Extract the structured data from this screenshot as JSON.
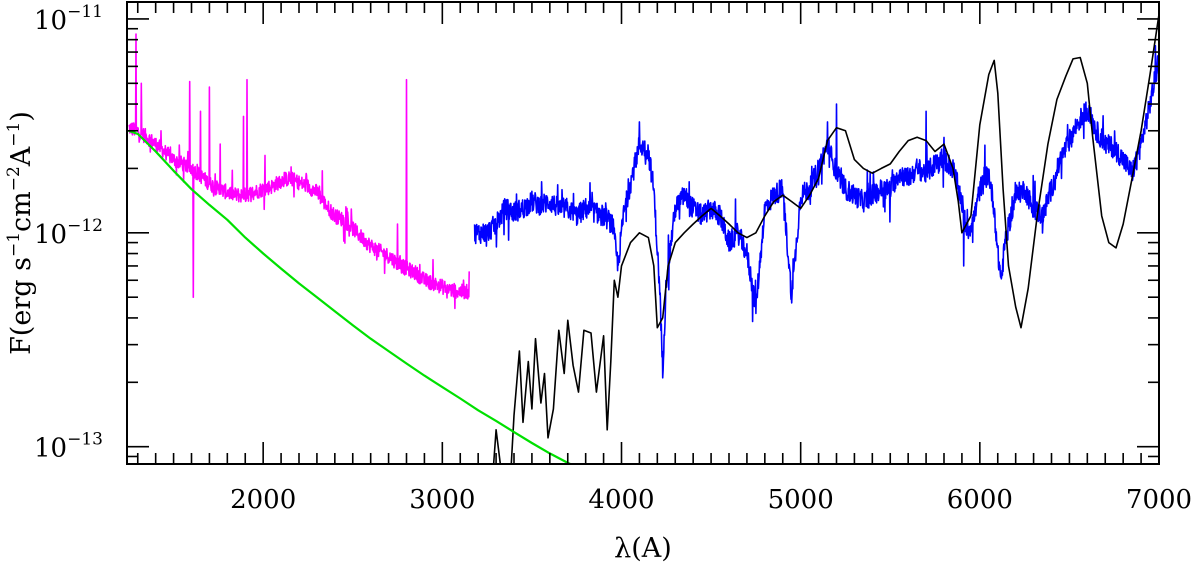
{
  "chart_data": {
    "type": "line",
    "title": "",
    "xlabel": "λ(A)",
    "ylabel": {
      "parts": [
        "F(erg s",
        "−1",
        "cm",
        "−2",
        "A",
        "−1",
        ")"
      ]
    },
    "xlim": [
      1240,
      7000
    ],
    "ylim": [
      8.3e-14,
      1.2e-11
    ],
    "yscale": "log",
    "x_ticks": [
      {
        "value": 2000,
        "label": "2000"
      },
      {
        "value": 3000,
        "label": "3000"
      },
      {
        "value": 4000,
        "label": "4000"
      },
      {
        "value": 5000,
        "label": "5000"
      },
      {
        "value": 6000,
        "label": "6000"
      },
      {
        "value": 7000,
        "label": "7000"
      }
    ],
    "y_ticks": [
      {
        "value": 1e-13,
        "base": "10",
        "exp": "−13"
      },
      {
        "value": 1e-12,
        "base": "10",
        "exp": "−12"
      },
      {
        "value": 1e-11,
        "base": "10",
        "exp": "−11"
      }
    ],
    "grid": false,
    "legend": "none",
    "series": [
      {
        "color": "#ff00ff",
        "style": "noisy",
        "noise_dex": 0.035,
        "points": [
          [
            1250,
            3.1e-12
          ],
          [
            1300,
            3e-12
          ],
          [
            1350,
            2.8e-12
          ],
          [
            1400,
            2.6e-12
          ],
          [
            1450,
            2.4e-12
          ],
          [
            1500,
            2.2e-12
          ],
          [
            1550,
            2.1e-12
          ],
          [
            1600,
            2e-12
          ],
          [
            1650,
            1.85e-12
          ],
          [
            1700,
            1.7e-12
          ],
          [
            1750,
            1.6e-12
          ],
          [
            1800,
            1.55e-12
          ],
          [
            1850,
            1.5e-12
          ],
          [
            1900,
            1.5e-12
          ],
          [
            1950,
            1.55e-12
          ],
          [
            2000,
            1.6e-12
          ],
          [
            2050,
            1.65e-12
          ],
          [
            2100,
            1.75e-12
          ],
          [
            2150,
            1.8e-12
          ],
          [
            2200,
            1.72e-12
          ],
          [
            2250,
            1.65e-12
          ],
          [
            2300,
            1.55e-12
          ],
          [
            2350,
            1.35e-12
          ],
          [
            2400,
            1.2e-12
          ],
          [
            2450,
            1.15e-12
          ],
          [
            2500,
            1.05e-12
          ],
          [
            2550,
            9.5e-13
          ],
          [
            2600,
            8.7e-13
          ],
          [
            2650,
            8.2e-13
          ],
          [
            2700,
            7.8e-13
          ],
          [
            2750,
            7.2e-13
          ],
          [
            2800,
            6.8e-13
          ],
          [
            2850,
            6.5e-13
          ],
          [
            2900,
            6e-13
          ],
          [
            2950,
            5.8e-13
          ],
          [
            3000,
            5.6e-13
          ],
          [
            3050,
            5.4e-13
          ],
          [
            3100,
            5.3e-13
          ],
          [
            3150,
            5.3e-13
          ]
        ],
        "spikes": [
          [
            1290,
            8.5e-12
          ],
          [
            1320,
            5e-12
          ],
          [
            1430,
            3e-12
          ],
          [
            1590,
            5.1e-12
          ],
          [
            1610,
            5e-13
          ],
          [
            1650,
            3.7e-12
          ],
          [
            1700,
            4.8e-12
          ],
          [
            1760,
            2.6e-12
          ],
          [
            1890,
            3.5e-12
          ],
          [
            1910,
            5.2e-12
          ],
          [
            2010,
            2.3e-12
          ],
          [
            2330,
            1.95e-12
          ],
          [
            2800,
            5.2e-12
          ],
          [
            2750,
            1.1e-12
          ],
          [
            3150,
            6.6e-13
          ],
          [
            3160,
            4.9e-13
          ]
        ]
      },
      {
        "color": "#0000ff",
        "style": "noisy",
        "noise_dex": 0.05,
        "points": [
          [
            3180,
            1e-12
          ],
          [
            3250,
            1e-12
          ],
          [
            3300,
            1.1e-12
          ],
          [
            3350,
            1.3e-12
          ],
          [
            3400,
            1.25e-12
          ],
          [
            3450,
            1.3e-12
          ],
          [
            3500,
            1.4e-12
          ],
          [
            3550,
            1.35e-12
          ],
          [
            3600,
            1.4e-12
          ],
          [
            3650,
            1.3e-12
          ],
          [
            3700,
            1.3e-12
          ],
          [
            3750,
            1.2e-12
          ],
          [
            3800,
            1.3e-12
          ],
          [
            3850,
            1.25e-12
          ],
          [
            3900,
            1.2e-12
          ],
          [
            3950,
            1.1e-12
          ],
          [
            3980,
            7e-13
          ],
          [
            4010,
            1.2e-12
          ],
          [
            4050,
            1.7e-12
          ],
          [
            4100,
            2.6e-12
          ],
          [
            4150,
            2.4e-12
          ],
          [
            4180,
            1.6e-12
          ],
          [
            4210,
            6e-13
          ],
          [
            4230,
            2.3e-13
          ],
          [
            4250,
            6e-13
          ],
          [
            4300,
            1.3e-12
          ],
          [
            4350,
            1.5e-12
          ],
          [
            4400,
            1.3e-12
          ],
          [
            4450,
            1.2e-12
          ],
          [
            4500,
            1.3e-12
          ],
          [
            4550,
            1.2e-12
          ],
          [
            4600,
            9e-13
          ],
          [
            4650,
            1e-12
          ],
          [
            4700,
            8e-13
          ],
          [
            4750,
            4.5e-13
          ],
          [
            4800,
            1.3e-12
          ],
          [
            4850,
            1.5e-12
          ],
          [
            4900,
            1.6e-12
          ],
          [
            4950,
            5e-13
          ],
          [
            5000,
            1.5e-12
          ],
          [
            5050,
            1.6e-12
          ],
          [
            5100,
            2e-12
          ],
          [
            5150,
            2.6e-12
          ],
          [
            5200,
            1.9e-12
          ],
          [
            5250,
            1.6e-12
          ],
          [
            5300,
            1.5e-12
          ],
          [
            5350,
            1.4e-12
          ],
          [
            5400,
            1.5e-12
          ],
          [
            5450,
            1.6e-12
          ],
          [
            5500,
            1.6e-12
          ],
          [
            5550,
            1.9e-12
          ],
          [
            5600,
            1.8e-12
          ],
          [
            5650,
            2e-12
          ],
          [
            5700,
            1.9e-12
          ],
          [
            5750,
            2.1e-12
          ],
          [
            5800,
            2.2e-12
          ],
          [
            5850,
            2e-12
          ],
          [
            5900,
            1.4e-12
          ],
          [
            5930,
            1e-12
          ],
          [
            5970,
            1.2e-12
          ],
          [
            6000,
            1.6e-12
          ],
          [
            6050,
            1.9e-12
          ],
          [
            6080,
            1.3e-12
          ],
          [
            6100,
            8e-13
          ],
          [
            6120,
            6e-13
          ],
          [
            6140,
            9e-13
          ],
          [
            6200,
            1.5e-12
          ],
          [
            6250,
            1.6e-12
          ],
          [
            6300,
            1.3e-12
          ],
          [
            6350,
            1.2e-12
          ],
          [
            6400,
            1.6e-12
          ],
          [
            6450,
            2.2e-12
          ],
          [
            6500,
            2.7e-12
          ],
          [
            6550,
            3.3e-12
          ],
          [
            6600,
            3.8e-12
          ],
          [
            6650,
            3e-12
          ],
          [
            6700,
            2.6e-12
          ],
          [
            6750,
            2.5e-12
          ],
          [
            6800,
            2.2e-12
          ],
          [
            6850,
            1.9e-12
          ],
          [
            6900,
            2.6e-12
          ],
          [
            6950,
            4e-12
          ],
          [
            7000,
            6.5e-12
          ]
        ],
        "spikes": [
          [
            4100,
            3.3e-12
          ],
          [
            4230,
            2.1e-13
          ],
          [
            4750,
            4.2e-13
          ],
          [
            4950,
            4.7e-13
          ],
          [
            5150,
            3.3e-12
          ],
          [
            5200,
            4e-12
          ],
          [
            5700,
            3.7e-12
          ],
          [
            5910,
            7e-13
          ],
          [
            6980,
            7.5e-12
          ]
        ]
      },
      {
        "color": "#000000",
        "style": "line",
        "points": [
          [
            3280,
            7e-14
          ],
          [
            3300,
            1.2e-13
          ],
          [
            3330,
            7.5e-14
          ],
          [
            3380,
            7e-14
          ],
          [
            3400,
            1.4e-13
          ],
          [
            3430,
            2.8e-13
          ],
          [
            3450,
            1.3e-13
          ],
          [
            3480,
            2.5e-13
          ],
          [
            3500,
            1.5e-13
          ],
          [
            3520,
            3.2e-13
          ],
          [
            3550,
            1.6e-13
          ],
          [
            3570,
            2.2e-13
          ],
          [
            3590,
            1.1e-13
          ],
          [
            3620,
            1.5e-13
          ],
          [
            3650,
            3.5e-13
          ],
          [
            3680,
            2.2e-13
          ],
          [
            3700,
            3.9e-13
          ],
          [
            3730,
            2.4e-13
          ],
          [
            3760,
            1.8e-13
          ],
          [
            3790,
            3.5e-13
          ],
          [
            3830,
            3.4e-13
          ],
          [
            3860,
            1.8e-13
          ],
          [
            3900,
            3.3e-13
          ],
          [
            3920,
            1.2e-13
          ],
          [
            3940,
            2.5e-13
          ],
          [
            3960,
            6e-13
          ],
          [
            3980,
            5e-13
          ],
          [
            4000,
            7e-13
          ],
          [
            4050,
            9e-13
          ],
          [
            4100,
            1e-12
          ],
          [
            4150,
            9.5e-13
          ],
          [
            4180,
            7e-13
          ],
          [
            4200,
            3.6e-13
          ],
          [
            4230,
            4e-13
          ],
          [
            4260,
            7e-13
          ],
          [
            4300,
            9e-13
          ],
          [
            4350,
            1e-12
          ],
          [
            4400,
            1.1e-12
          ],
          [
            4450,
            1.2e-12
          ],
          [
            4500,
            1.3e-12
          ],
          [
            4550,
            1.2e-12
          ],
          [
            4600,
            1.1e-12
          ],
          [
            4650,
            1e-12
          ],
          [
            4700,
            9.5e-13
          ],
          [
            4750,
            1e-12
          ],
          [
            4800,
            1.2e-12
          ],
          [
            4850,
            1.4e-12
          ],
          [
            4900,
            1.5e-12
          ],
          [
            4950,
            1.4e-12
          ],
          [
            5000,
            1.3e-12
          ],
          [
            5050,
            1.5e-12
          ],
          [
            5100,
            1.8e-12
          ],
          [
            5150,
            2.7e-12
          ],
          [
            5200,
            3.1e-12
          ],
          [
            5250,
            3e-12
          ],
          [
            5300,
            2.2e-12
          ],
          [
            5350,
            2e-12
          ],
          [
            5400,
            1.9e-12
          ],
          [
            5450,
            2e-12
          ],
          [
            5500,
            2.1e-12
          ],
          [
            5550,
            2.4e-12
          ],
          [
            5600,
            2.7e-12
          ],
          [
            5650,
            2.8e-12
          ],
          [
            5700,
            2.7e-12
          ],
          [
            5750,
            2.4e-12
          ],
          [
            5800,
            2.6e-12
          ],
          [
            5850,
            2e-12
          ],
          [
            5880,
            1.4e-12
          ],
          [
            5900,
            1e-12
          ],
          [
            5950,
            1.2e-12
          ],
          [
            6000,
            3.2e-12
          ],
          [
            6050,
            5.5e-12
          ],
          [
            6080,
            6.4e-12
          ],
          [
            6100,
            4.5e-12
          ],
          [
            6130,
            1.6e-12
          ],
          [
            6160,
            7e-13
          ],
          [
            6200,
            4.5e-13
          ],
          [
            6230,
            3.6e-13
          ],
          [
            6270,
            5.5e-13
          ],
          [
            6320,
            1.2e-12
          ],
          [
            6380,
            2.6e-12
          ],
          [
            6430,
            4.2e-12
          ],
          [
            6480,
            5.4e-12
          ],
          [
            6520,
            6.5e-12
          ],
          [
            6560,
            6.6e-12
          ],
          [
            6600,
            5e-12
          ],
          [
            6630,
            2.8e-12
          ],
          [
            6680,
            1.2e-12
          ],
          [
            6720,
            9e-13
          ],
          [
            6760,
            8.5e-13
          ],
          [
            6800,
            1.1e-12
          ],
          [
            6850,
            1.8e-12
          ],
          [
            6900,
            3e-12
          ],
          [
            6950,
            5.5e-12
          ],
          [
            7000,
            1.05e-11
          ]
        ]
      },
      {
        "color": "#00e000",
        "style": "smooth",
        "points": [
          [
            1250,
            3e-12
          ],
          [
            1300,
            2.9e-12
          ],
          [
            1400,
            2.4e-12
          ],
          [
            1500,
            1.95e-12
          ],
          [
            1600,
            1.6e-12
          ],
          [
            1700,
            1.35e-12
          ],
          [
            1800,
            1.15e-12
          ],
          [
            1900,
            9.5e-13
          ],
          [
            2000,
            8e-13
          ],
          [
            2100,
            6.8e-13
          ],
          [
            2200,
            5.8e-13
          ],
          [
            2300,
            5e-13
          ],
          [
            2400,
            4.3e-13
          ],
          [
            2500,
            3.7e-13
          ],
          [
            2600,
            3.2e-13
          ],
          [
            2700,
            2.8e-13
          ],
          [
            2800,
            2.45e-13
          ],
          [
            2900,
            2.15e-13
          ],
          [
            3000,
            1.9e-13
          ],
          [
            3100,
            1.68e-13
          ],
          [
            3200,
            1.48e-13
          ],
          [
            3300,
            1.32e-13
          ],
          [
            3400,
            1.17e-13
          ],
          [
            3500,
            1.04e-13
          ],
          [
            3600,
            9.3e-14
          ],
          [
            3700,
            8.4e-14
          ],
          [
            3800,
            7.7e-14
          ]
        ]
      }
    ]
  }
}
